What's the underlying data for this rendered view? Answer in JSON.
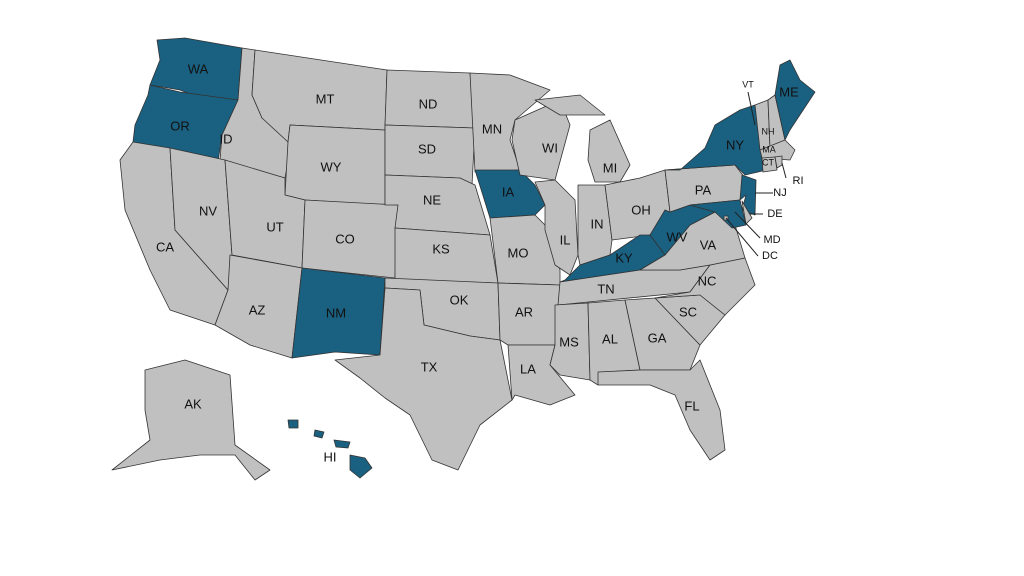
{
  "colors": {
    "highlighted": "#1a6080",
    "default": "#c0c0c0",
    "border": "#333333"
  },
  "highlighted_states": [
    "WA",
    "OR",
    "NM",
    "IA",
    "KY",
    "WV",
    "MD",
    "NJ",
    "NY",
    "ME",
    "HI"
  ],
  "states": [
    {
      "id": "WA",
      "label": "WA"
    },
    {
      "id": "OR",
      "label": "OR"
    },
    {
      "id": "CA",
      "label": "CA"
    },
    {
      "id": "ID",
      "label": "ID"
    },
    {
      "id": "NV",
      "label": "NV"
    },
    {
      "id": "MT",
      "label": "MT"
    },
    {
      "id": "WY",
      "label": "WY"
    },
    {
      "id": "UT",
      "label": "UT"
    },
    {
      "id": "AZ",
      "label": "AZ"
    },
    {
      "id": "CO",
      "label": "CO"
    },
    {
      "id": "NM",
      "label": "NM"
    },
    {
      "id": "ND",
      "label": "ND"
    },
    {
      "id": "SD",
      "label": "SD"
    },
    {
      "id": "NE",
      "label": "NE"
    },
    {
      "id": "KS",
      "label": "KS"
    },
    {
      "id": "OK",
      "label": "OK"
    },
    {
      "id": "TX",
      "label": "TX"
    },
    {
      "id": "MN",
      "label": "MN"
    },
    {
      "id": "IA",
      "label": "IA"
    },
    {
      "id": "MO",
      "label": "MO"
    },
    {
      "id": "AR",
      "label": "AR"
    },
    {
      "id": "LA",
      "label": "LA"
    },
    {
      "id": "WI",
      "label": "WI"
    },
    {
      "id": "IL",
      "label": "IL"
    },
    {
      "id": "MI",
      "label": "MI"
    },
    {
      "id": "IN",
      "label": "IN"
    },
    {
      "id": "OH",
      "label": "OH"
    },
    {
      "id": "KY",
      "label": "KY"
    },
    {
      "id": "TN",
      "label": "TN"
    },
    {
      "id": "MS",
      "label": "MS"
    },
    {
      "id": "AL",
      "label": "AL"
    },
    {
      "id": "GA",
      "label": "GA"
    },
    {
      "id": "FL",
      "label": "FL"
    },
    {
      "id": "SC",
      "label": "SC"
    },
    {
      "id": "NC",
      "label": "NC"
    },
    {
      "id": "VA",
      "label": "VA"
    },
    {
      "id": "WV",
      "label": "WV"
    },
    {
      "id": "PA",
      "label": "PA"
    },
    {
      "id": "NY",
      "label": "NY"
    },
    {
      "id": "NJ",
      "label": "NJ"
    },
    {
      "id": "DE",
      "label": "DE"
    },
    {
      "id": "MD",
      "label": "MD"
    },
    {
      "id": "DC",
      "label": "DC"
    },
    {
      "id": "VT",
      "label": "VT"
    },
    {
      "id": "NH",
      "label": "NH"
    },
    {
      "id": "ME",
      "label": "ME"
    },
    {
      "id": "MA",
      "label": "MA"
    },
    {
      "id": "CT",
      "label": "CT"
    },
    {
      "id": "RI",
      "label": "RI"
    },
    {
      "id": "AK",
      "label": "AK"
    },
    {
      "id": "HI",
      "label": "HI"
    }
  ]
}
